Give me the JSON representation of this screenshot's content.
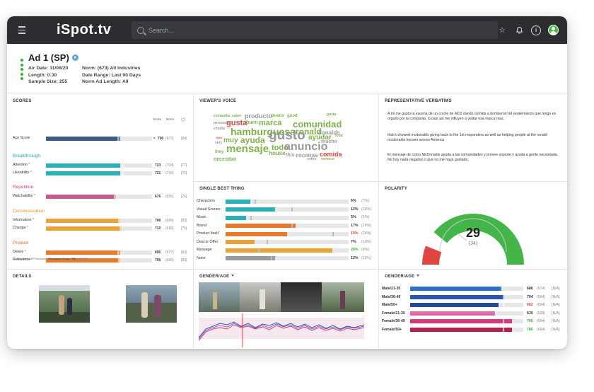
{
  "app": {
    "logo": "iSpot.tv",
    "search_placeholder": "Search..."
  },
  "ad": {
    "title": "Ad 1 (SP)",
    "air_date": "Air Date: 11/08/20",
    "length": "Length: 0:30",
    "sample_size": "Sample Size: 255",
    "norm": "Norm: (673) All Industries",
    "date_range": "Date Range: Last 90 Days",
    "norm_ad_length": "Norm Ad Length: All"
  },
  "scores": {
    "title": "SCORES",
    "col_score": "Score",
    "col_norm": "Norm",
    "ace": {
      "label": "Ace Score",
      "value": "700",
      "norm": "(673)",
      "rank": "[84]",
      "pct": 0.7,
      "norm_pct": 0.67,
      "color": "#3b5a8c",
      "trend": "▲"
    },
    "sections": [
      {
        "name": "Breakthrough",
        "color": "#1fa8b8",
        "rows": [
          {
            "label": "Attention",
            "value": "723",
            "norm": "(704)",
            "rank": "[77]",
            "pct": 0.7,
            "norm_pct": 0.72,
            "color": "#2ab0b8"
          },
          {
            "label": "Likeability",
            "value": "721",
            "norm": "(704)",
            "rank": "[75]",
            "pct": 0.7,
            "norm_pct": 0.71,
            "color": "#2ab0b8"
          }
        ]
      },
      {
        "name": "Repetition",
        "color": "#c3477f",
        "rows": [
          {
            "label": "Watchability",
            "value": "676",
            "norm": "(655)",
            "rank": "[76]",
            "pct": 0.66,
            "norm_pct": 0.64,
            "color": "#c95a91"
          }
        ]
      },
      {
        "name": "Communication",
        "color": "#e8951f",
        "rows": [
          {
            "label": "Information",
            "value": "706",
            "norm": "(684)",
            "rank": "[83]",
            "pct": 0.7,
            "norm_pct": 0.68,
            "color": "#eba234"
          },
          {
            "label": "Change",
            "value": "712",
            "norm": "(698)",
            "rank": "[75]",
            "pct": 0.71,
            "norm_pct": 0.69,
            "color": "#eba234"
          }
        ]
      },
      {
        "name": "Product",
        "color": "#e06b1a",
        "rows": [
          {
            "label": "Desire",
            "value": "695",
            "norm": "(677)",
            "rank": "[83]",
            "pct": 0.7,
            "norm_pct": 0.67,
            "color": "#e8782b"
          },
          {
            "label": "Relevance",
            "value": "705",
            "norm": "(680)",
            "rank": "[83]",
            "pct": 0.7,
            "norm_pct": 0.68,
            "color": "#e8782b"
          }
        ]
      }
    ],
    "footnote_a": "* Components of Persuasion;",
    "footnote_b": "Persuasion Score:",
    "footnote_c": "710",
    "footnote_d": "(690) [82]"
  },
  "viewers_voice": {
    "title": "VIEWER'S VOICE",
    "words": [
      {
        "t": "compañía",
        "c": "#7fb24a",
        "s": 5
      },
      {
        "t": "saber",
        "c": "#7fb24a",
        "s": 5
      },
      {
        "t": "producto",
        "c": "#999999",
        "s": 9
      },
      {
        "t": "bueno",
        "c": "#7fb24a",
        "s": 6
      },
      {
        "t": "good",
        "c": "#7fb24a",
        "s": 6
      },
      {
        "t": "gusta",
        "c": "#e0453f",
        "s": 11
      },
      {
        "t": "buen",
        "c": "#7fb24a",
        "s": 7
      },
      {
        "t": "marca",
        "c": "#7fb24a",
        "s": 11
      },
      {
        "t": "comunidad",
        "c": "#7fb24a",
        "s": 13
      },
      {
        "t": "gusta",
        "c": "#7fb24a",
        "s": 5
      },
      {
        "t": "personas",
        "c": "#999999",
        "s": 5
      },
      {
        "t": "hamburguesa",
        "c": "#7fb24a",
        "s": 14
      },
      {
        "t": "ronald",
        "c": "#7fb24a",
        "s": 12
      },
      {
        "t": "donalds",
        "c": "#999999",
        "s": 8
      },
      {
        "t": "charity",
        "c": "#999999",
        "s": 5
      },
      {
        "t": "gusto",
        "c": "#999999",
        "s": 19
      },
      {
        "t": "ayudar",
        "c": "#7fb24a",
        "s": 10
      },
      {
        "t": "food",
        "c": "#7fb24a",
        "s": 5
      },
      {
        "t": "bien",
        "c": "#e0453f",
        "s": 4
      },
      {
        "t": "muy",
        "c": "#7fb24a",
        "s": 10
      },
      {
        "t": "ayuda",
        "c": "#7fb24a",
        "s": 12
      },
      {
        "t": "mucho",
        "c": "#999999",
        "s": 7
      },
      {
        "t": "very",
        "c": "#999999",
        "s": 5
      },
      {
        "t": "mensaje",
        "c": "#7fb24a",
        "s": 15
      },
      {
        "t": "todo",
        "c": "#7fb24a",
        "s": 11
      },
      {
        "t": "anuncio",
        "c": "#999999",
        "s": 16
      },
      {
        "t": "they",
        "c": "#7fb24a",
        "s": 6
      },
      {
        "t": "house",
        "c": "#7fb24a",
        "s": 8
      },
      {
        "t": "this",
        "c": "#999999",
        "s": 7
      },
      {
        "t": "escenas",
        "c": "#999999",
        "s": 8
      },
      {
        "t": "comida",
        "c": "#e0453f",
        "s": 9
      },
      {
        "t": "necesitan",
        "c": "#7fb24a",
        "s": 7
      },
      {
        "t": "sobre",
        "c": "#999999",
        "s": 5
      },
      {
        "t": "servicio",
        "c": "#7fb24a",
        "s": 5
      }
    ]
  },
  "verbatims": {
    "title": "REPRESENTATIVE VERBATIMS",
    "items": [
      "A mi me gusto la escena de un coche de McD dando comida a bomberos! El sentiemiento que tengo es orgullo por la compania. Cosas asi me influyen a visitar esa marca mas.",
      "that it showed mcdonalds giving back to the 1st responders as well as helping people at the ronald mcdonalds houses across America",
      "El mensaje de como McDonalds ayuda a las comunidades y provee soporte y ayuda a gente necesitada. No hay nada negativo o que no me haya gustado."
    ]
  },
  "single_best": {
    "title": "SINGLE BEST THING",
    "rows": [
      {
        "label": "Characters",
        "pct": "6%",
        "ref": "(7%)",
        "v": 0.06,
        "n": 0.07,
        "color": "#2ab0b8",
        "pct_color": "#333333"
      },
      {
        "label": "Visual Scenes",
        "pct": "12%",
        "ref": "(16%)",
        "v": 0.12,
        "n": 0.16,
        "color": "#2ab0b8",
        "pct_color": "#333333"
      },
      {
        "label": "Music",
        "pct": "5%",
        "ref": "(6%)",
        "v": 0.05,
        "n": 0.06,
        "color": "#2ab0b8",
        "pct_color": "#333333"
      },
      {
        "label": "Brand",
        "pct": "17%",
        "ref": "(16%)",
        "v": 0.17,
        "n": 0.16,
        "color": "#e8782b",
        "pct_color": "#333333"
      },
      {
        "label": "Product Itself",
        "pct": "15%",
        "ref": "(26%)",
        "v": 0.15,
        "n": 0.26,
        "color": "#e8782b",
        "pct_color": "#e0453f"
      },
      {
        "label": "Deal or Offer",
        "pct": "7%",
        "ref": "(10%)",
        "v": 0.07,
        "n": 0.1,
        "color": "#eba234",
        "pct_color": "#333333"
      },
      {
        "label": "Message",
        "pct": "26%",
        "ref": "(8%)",
        "v": 0.26,
        "n": 0.08,
        "color": "#eba234",
        "pct_color": "#3ab33a"
      },
      {
        "label": "None",
        "pct": "12%",
        "ref": "(11%)",
        "v": 0.12,
        "n": 0.11,
        "color": "#999999",
        "pct_color": "#333333"
      }
    ]
  },
  "polarity": {
    "title": "POLARITY",
    "score": "29",
    "norm": "(34)",
    "positive_level": 0.78,
    "negative_level": 0.12,
    "pos_color": "#44b549",
    "neg_color": "#e0453f"
  },
  "details": {
    "title": "DETAILS"
  },
  "video_panel": {
    "title": "GENDER/AGE"
  },
  "gender_age": {
    "title": "GENDER/AGE",
    "rows": [
      {
        "label": "Male/21-35",
        "value": "686",
        "value_color": "#333333",
        "norm": "(674)",
        "na": "[N/A]",
        "v": 0.81,
        "n": 0.8,
        "color": "#2d6fc4"
      },
      {
        "label": "Male/36-49",
        "value": "704",
        "value_color": "#333333",
        "norm": "(694)",
        "na": "[N/A]",
        "v": 0.83,
        "n": 0.82,
        "color": "#2a58b0"
      },
      {
        "label": "Male/50+",
        "value": "662",
        "value_color": "#e0453f",
        "norm": "(694)",
        "na": "[N/A]",
        "v": 0.78,
        "n": 0.82,
        "color": "#24489a"
      },
      {
        "label": "Female/21-35",
        "value": "639",
        "value_color": "#333333",
        "norm": "(639)",
        "na": "[N/A]",
        "v": 0.75,
        "n": 0.75,
        "color": "#e06aa8"
      },
      {
        "label": "Female/36-49",
        "value": "766",
        "value_color": "#3ab33a",
        "norm": "(694)",
        "na": "[N/A]",
        "v": 0.9,
        "n": 0.82,
        "color": "#d63a7a"
      },
      {
        "label": "Female/50+",
        "value": "766",
        "value_color": "#3ab33a",
        "norm": "(694)",
        "na": "[N/A]",
        "v": 0.9,
        "n": 0.82,
        "color": "#b81e4f"
      }
    ]
  }
}
